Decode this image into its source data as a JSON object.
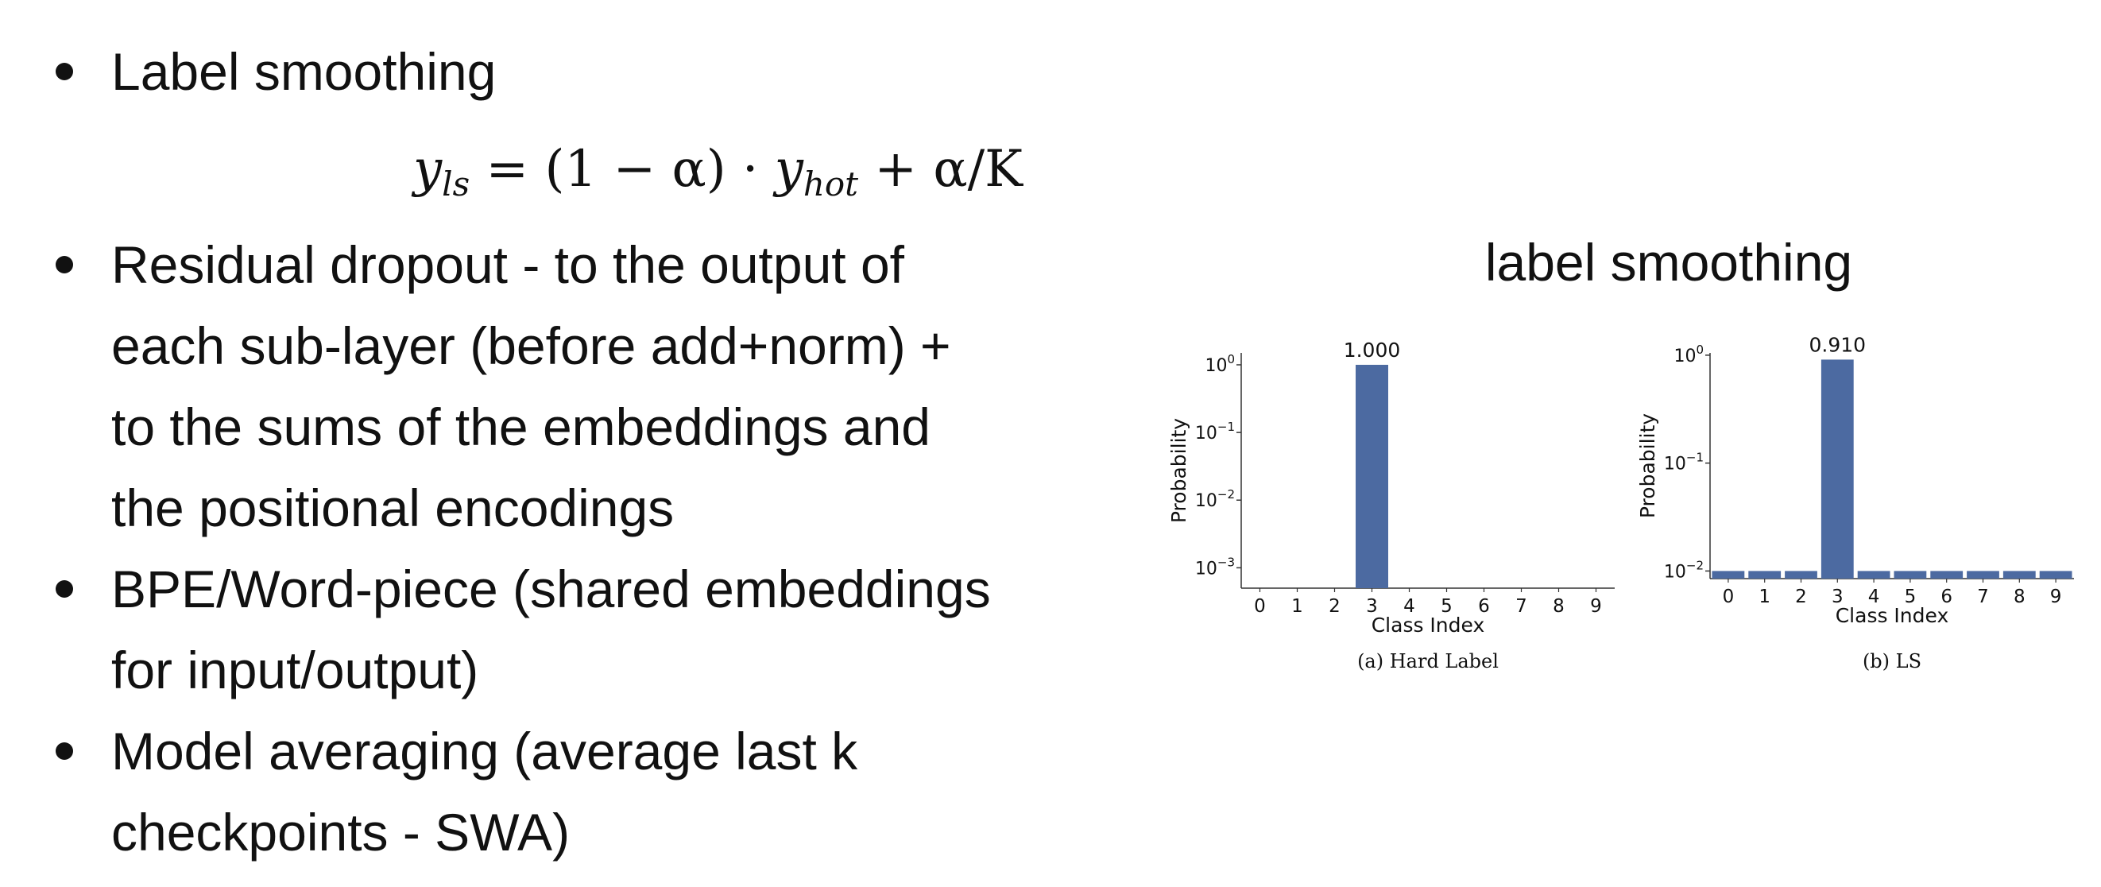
{
  "bullets": [
    {
      "lines": [
        "Label smoothing"
      ]
    },
    {
      "lines": [
        "Residual dropout - to the output of",
        "each sub-layer (before add+norm) +",
        "to the sums of the embeddings and",
        "the positional encodings"
      ]
    },
    {
      "lines": [
        "BPE/Word-piece (shared embeddings",
        "for input/output)"
      ]
    },
    {
      "lines": [
        "Model averaging (average last k",
        "checkpoints - SWA)"
      ]
    }
  ],
  "formula": {
    "lhs": "y",
    "lhs_sub": "ls",
    "middle": " = (1 − α) · ",
    "y": "y",
    "y_sub": "hot",
    "rhs": " + α/K"
  },
  "chart_title": "label smoothing",
  "chart_data": [
    {
      "type": "bar",
      "caption": "(a) Hard Label",
      "xlabel": "Class Index",
      "ylabel": "Probability",
      "yscale": "log",
      "ylim": [
        0.0005,
        1.5
      ],
      "yticks": [
        {
          "base": "10",
          "exp": "0"
        },
        {
          "base": "10",
          "exp": "−1"
        },
        {
          "base": "10",
          "exp": "−2"
        },
        {
          "base": "10",
          "exp": "−3"
        }
      ],
      "categories": [
        "0",
        "1",
        "2",
        "3",
        "4",
        "5",
        "6",
        "7",
        "8",
        "9"
      ],
      "values": [
        0,
        0,
        0,
        1.0,
        0,
        0,
        0,
        0,
        0,
        0
      ],
      "annotations": [
        {
          "category": "3",
          "label": "1.000"
        }
      ],
      "bar_color": "#4c6aa1"
    },
    {
      "type": "bar",
      "caption": "(b) LS",
      "xlabel": "Class Index",
      "ylabel": "Probability",
      "yscale": "log",
      "ylim": [
        0.0085,
        1.05
      ],
      "yticks": [
        {
          "base": "10",
          "exp": "0"
        },
        {
          "base": "10",
          "exp": "−1"
        },
        {
          "base": "10",
          "exp": "−2"
        }
      ],
      "categories": [
        "0",
        "1",
        "2",
        "3",
        "4",
        "5",
        "6",
        "7",
        "8",
        "9"
      ],
      "values": [
        0.01,
        0.01,
        0.01,
        0.91,
        0.01,
        0.01,
        0.01,
        0.01,
        0.01,
        0.01
      ],
      "annotations": [
        {
          "category": "3",
          "label": "0.910"
        }
      ],
      "bar_color": "#4c6aa1"
    }
  ]
}
